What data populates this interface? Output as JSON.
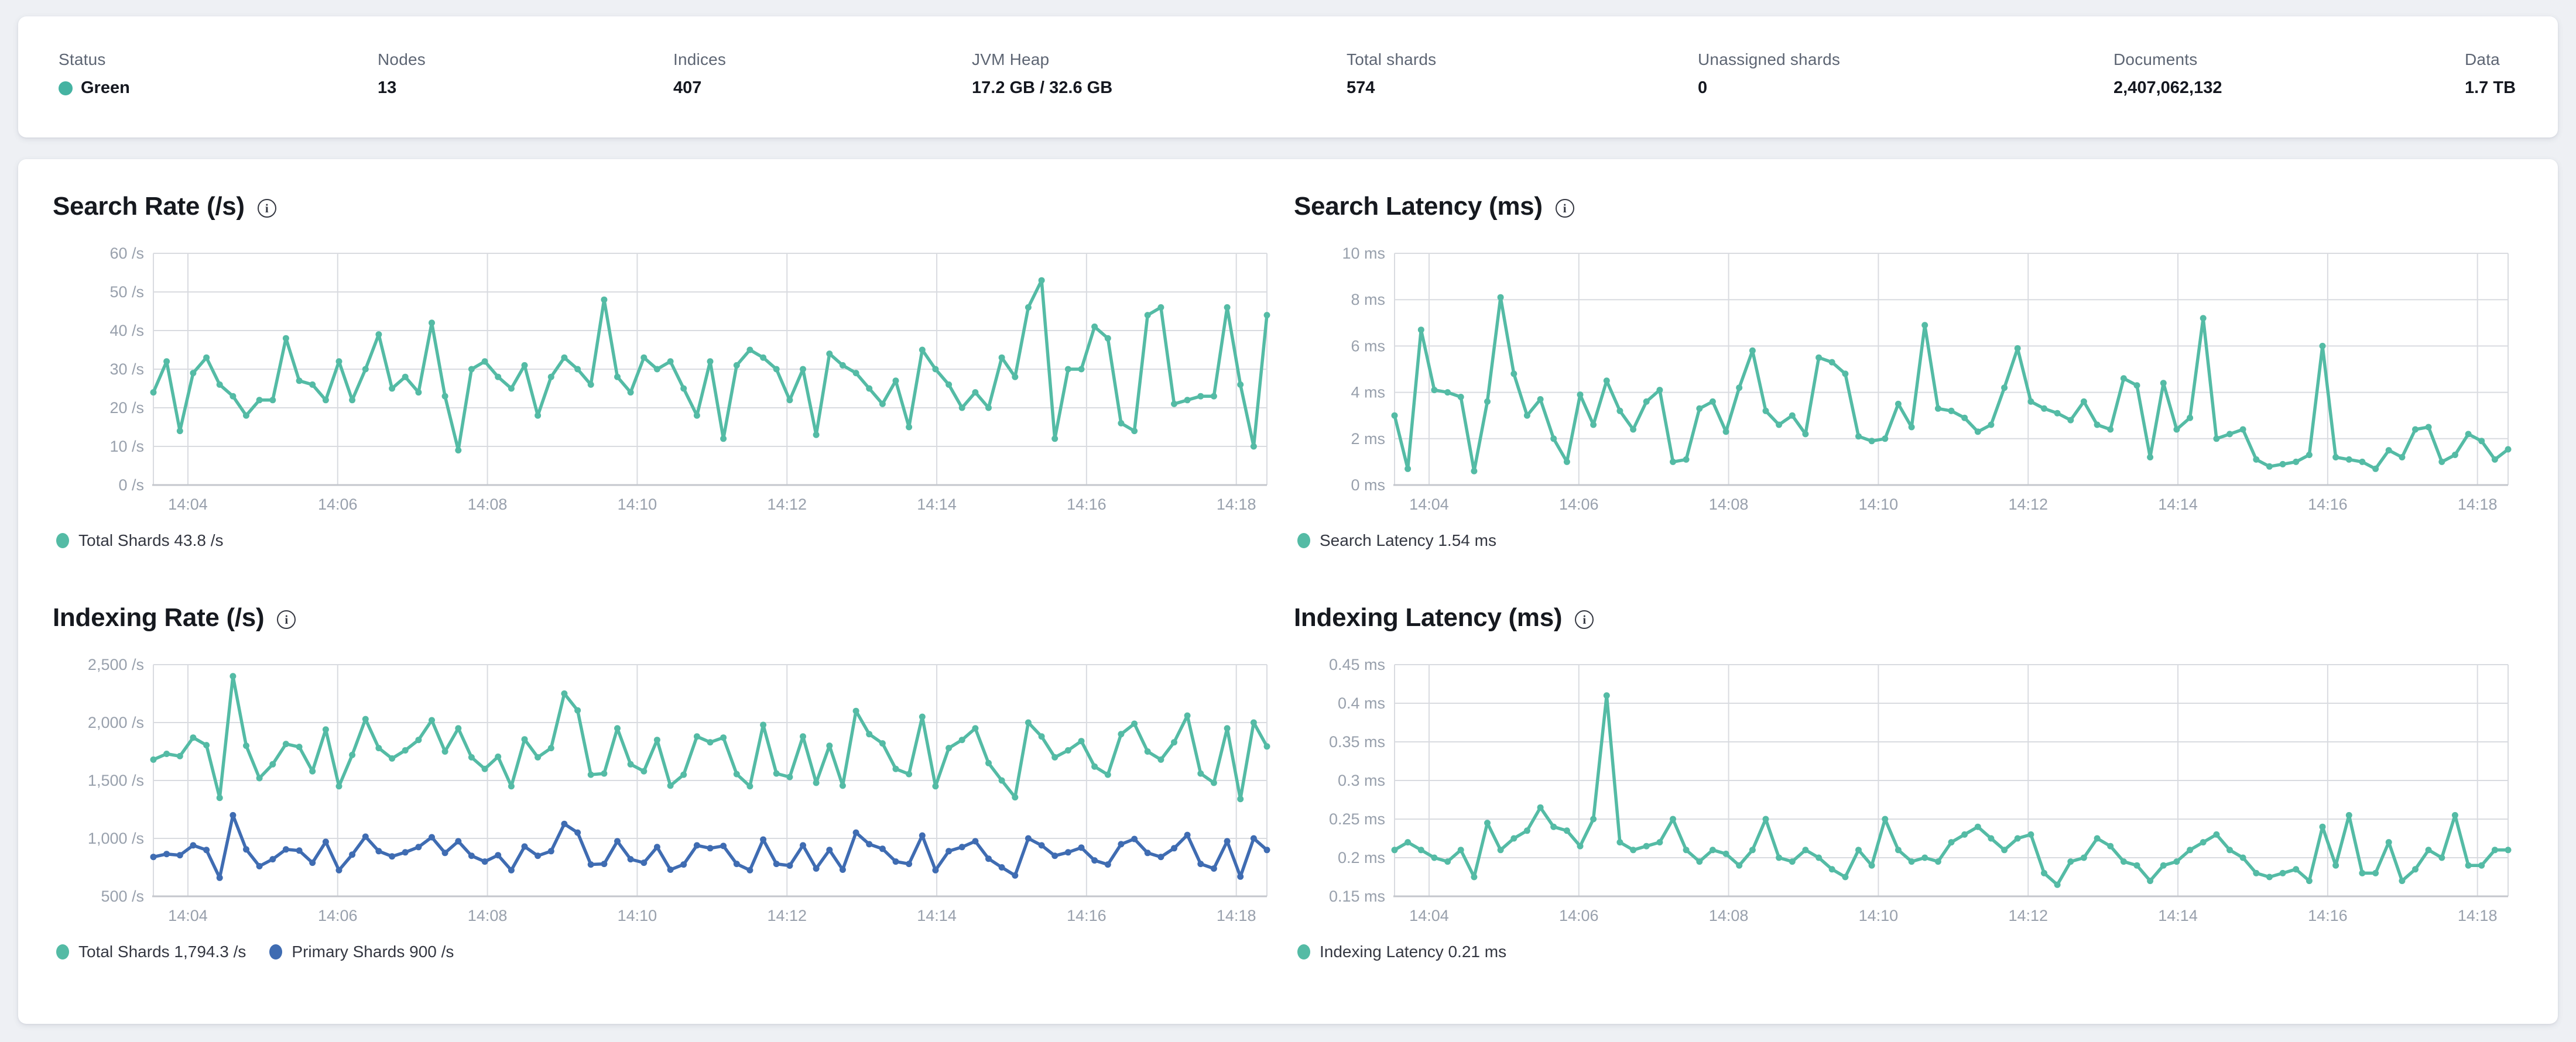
{
  "header": {
    "status_color": "#45b3a2",
    "stats": [
      {
        "label": "Status",
        "value": "Green"
      },
      {
        "label": "Nodes",
        "value": "13"
      },
      {
        "label": "Indices",
        "value": "407"
      },
      {
        "label": "JVM Heap",
        "value": "17.2 GB / 32.6 GB"
      },
      {
        "label": "Total shards",
        "value": "574"
      },
      {
        "label": "Unassigned shards",
        "value": "0"
      },
      {
        "label": "Documents",
        "value": "2,407,062,132"
      },
      {
        "label": "Data",
        "value": "1.7 TB"
      }
    ]
  },
  "chart_data": [
    {
      "type": "line",
      "title": "Search Rate (/s)",
      "ylim": [
        0,
        60
      ],
      "yticks": [
        {
          "v": 0,
          "label": "0 /s"
        },
        {
          "v": 10,
          "label": "10 /s"
        },
        {
          "v": 20,
          "label": "20 /s"
        },
        {
          "v": 30,
          "label": "30 /s"
        },
        {
          "v": 40,
          "label": "40 /s"
        },
        {
          "v": 50,
          "label": "50 /s"
        },
        {
          "v": 60,
          "label": "60 /s"
        }
      ],
      "xticks": [
        "14:04",
        "14:06",
        "14:08",
        "14:10",
        "14:12",
        "14:14",
        "14:16",
        "14:18"
      ],
      "grid": true,
      "legend_position": "bottom",
      "series": [
        {
          "name": "Total Shards",
          "legend": "Total Shards 43.8 /s",
          "color": "#54bba5",
          "values": [
            24,
            32,
            14,
            29,
            33,
            26,
            23,
            18,
            22,
            22,
            38,
            27,
            26,
            22,
            32,
            22,
            30,
            39,
            25,
            28,
            24,
            42,
            23,
            9,
            30,
            32,
            28,
            25,
            31,
            18,
            28,
            33,
            30,
            26,
            48,
            28,
            24,
            33,
            30,
            32,
            25,
            18,
            32,
            12,
            31,
            35,
            33,
            30,
            22,
            30,
            13,
            34,
            31,
            29,
            25,
            21,
            27,
            15,
            35,
            30,
            26,
            20,
            24,
            20,
            33,
            28,
            46,
            53,
            12,
            30,
            30,
            41,
            38,
            16,
            14,
            44,
            46,
            21,
            22,
            23,
            23,
            46,
            26,
            10,
            44
          ]
        }
      ]
    },
    {
      "type": "line",
      "title": "Search Latency (ms)",
      "ylim": [
        0,
        10
      ],
      "yticks": [
        {
          "v": 0,
          "label": "0 ms"
        },
        {
          "v": 2,
          "label": "2 ms"
        },
        {
          "v": 4,
          "label": "4 ms"
        },
        {
          "v": 6,
          "label": "6 ms"
        },
        {
          "v": 8,
          "label": "8 ms"
        },
        {
          "v": 10,
          "label": "10 ms"
        }
      ],
      "xticks": [
        "14:04",
        "14:06",
        "14:08",
        "14:10",
        "14:12",
        "14:14",
        "14:16",
        "14:18"
      ],
      "grid": true,
      "legend_position": "bottom",
      "series": [
        {
          "name": "Search Latency",
          "legend": "Search Latency 1.54 ms",
          "color": "#54bba5",
          "values": [
            3.0,
            0.7,
            6.7,
            4.1,
            4.0,
            3.8,
            0.6,
            3.6,
            8.1,
            4.8,
            3.0,
            3.7,
            2.0,
            1.0,
            3.9,
            2.6,
            4.5,
            3.2,
            2.4,
            3.6,
            4.1,
            1.0,
            1.1,
            3.3,
            3.6,
            2.3,
            4.2,
            5.8,
            3.2,
            2.6,
            3.0,
            2.2,
            5.5,
            5.3,
            4.8,
            2.1,
            1.9,
            2.0,
            3.5,
            2.5,
            6.9,
            3.3,
            3.2,
            2.9,
            2.3,
            2.6,
            4.2,
            5.9,
            3.6,
            3.3,
            3.1,
            2.8,
            3.6,
            2.6,
            2.4,
            4.6,
            4.3,
            1.2,
            4.4,
            2.4,
            2.9,
            7.2,
            2.0,
            2.2,
            2.4,
            1.1,
            0.8,
            0.9,
            1.0,
            1.3,
            6.0,
            1.2,
            1.1,
            1.0,
            0.7,
            1.5,
            1.2,
            2.4,
            2.5,
            1.0,
            1.3,
            2.2,
            1.9,
            1.1,
            1.54
          ]
        }
      ]
    },
    {
      "type": "line",
      "title": "Indexing Rate (/s)",
      "ylim": [
        500,
        2500
      ],
      "yticks": [
        {
          "v": 500,
          "label": "500 /s"
        },
        {
          "v": 1000,
          "label": "1,000 /s"
        },
        {
          "v": 1500,
          "label": "1,500 /s"
        },
        {
          "v": 2000,
          "label": "2,000 /s"
        },
        {
          "v": 2500,
          "label": "2,500 /s"
        }
      ],
      "xticks": [
        "14:04",
        "14:06",
        "14:08",
        "14:10",
        "14:12",
        "14:14",
        "14:16",
        "14:18"
      ],
      "grid": true,
      "legend_position": "bottom",
      "series": [
        {
          "name": "Total Shards",
          "legend": "Total Shards 1,794.3 /s",
          "color": "#54bba5",
          "values": [
            1680,
            1730,
            1710,
            1870,
            1805,
            1350,
            2400,
            1800,
            1520,
            1640,
            1815,
            1790,
            1580,
            1940,
            1450,
            1720,
            2030,
            1780,
            1690,
            1760,
            1850,
            2020,
            1750,
            1950,
            1700,
            1600,
            1705,
            1450,
            1855,
            1700,
            1780,
            2250,
            2105,
            1550,
            1560,
            1950,
            1640,
            1580,
            1850,
            1455,
            1550,
            1880,
            1830,
            1870,
            1555,
            1450,
            1980,
            1560,
            1530,
            1880,
            1480,
            1800,
            1455,
            2100,
            1900,
            1820,
            1600,
            1555,
            2050,
            1450,
            1780,
            1850,
            1950,
            1650,
            1500,
            1355,
            2000,
            1880,
            1700,
            1760,
            1840,
            1620,
            1550,
            1900,
            1990,
            1750,
            1680,
            1830,
            2060,
            1560,
            1480,
            1950,
            1340,
            2000,
            1794
          ]
        },
        {
          "name": "Primary Shards",
          "legend": "Primary Shards 900 /s",
          "color": "#3f6cb2",
          "values": [
            840,
            865,
            855,
            940,
            900,
            660,
            1200,
            905,
            760,
            820,
            905,
            895,
            790,
            970,
            725,
            860,
            1015,
            890,
            845,
            880,
            925,
            1010,
            875,
            975,
            850,
            800,
            855,
            725,
            930,
            850,
            890,
            1125,
            1050,
            775,
            780,
            975,
            820,
            790,
            925,
            730,
            775,
            940,
            915,
            935,
            780,
            725,
            990,
            780,
            765,
            940,
            740,
            900,
            730,
            1050,
            950,
            910,
            800,
            780,
            1025,
            725,
            890,
            925,
            975,
            825,
            750,
            680,
            1000,
            940,
            850,
            880,
            920,
            810,
            775,
            950,
            995,
            875,
            840,
            915,
            1030,
            780,
            740,
            975,
            670,
            1000,
            900
          ]
        }
      ]
    },
    {
      "type": "line",
      "title": "Indexing Latency (ms)",
      "ylim": [
        0.15,
        0.45
      ],
      "yticks": [
        {
          "v": 0.15,
          "label": "0.15 ms"
        },
        {
          "v": 0.2,
          "label": "0.2 ms"
        },
        {
          "v": 0.25,
          "label": "0.25 ms"
        },
        {
          "v": 0.3,
          "label": "0.3 ms"
        },
        {
          "v": 0.35,
          "label": "0.35 ms"
        },
        {
          "v": 0.4,
          "label": "0.4 ms"
        },
        {
          "v": 0.45,
          "label": "0.45 ms"
        }
      ],
      "xticks": [
        "14:04",
        "14:06",
        "14:08",
        "14:10",
        "14:12",
        "14:14",
        "14:16",
        "14:18"
      ],
      "grid": true,
      "legend_position": "bottom",
      "series": [
        {
          "name": "Indexing Latency",
          "legend": "Indexing Latency 0.21 ms",
          "color": "#54bba5",
          "values": [
            0.21,
            0.22,
            0.21,
            0.2,
            0.195,
            0.21,
            0.175,
            0.245,
            0.21,
            0.225,
            0.235,
            0.265,
            0.24,
            0.235,
            0.215,
            0.25,
            0.41,
            0.22,
            0.21,
            0.215,
            0.22,
            0.25,
            0.21,
            0.195,
            0.21,
            0.205,
            0.19,
            0.21,
            0.25,
            0.2,
            0.195,
            0.21,
            0.2,
            0.185,
            0.175,
            0.21,
            0.19,
            0.25,
            0.21,
            0.195,
            0.2,
            0.195,
            0.22,
            0.23,
            0.24,
            0.225,
            0.21,
            0.225,
            0.23,
            0.18,
            0.165,
            0.195,
            0.2,
            0.225,
            0.215,
            0.195,
            0.19,
            0.17,
            0.19,
            0.195,
            0.21,
            0.22,
            0.23,
            0.21,
            0.2,
            0.18,
            0.175,
            0.18,
            0.185,
            0.17,
            0.24,
            0.19,
            0.255,
            0.18,
            0.18,
            0.22,
            0.17,
            0.185,
            0.21,
            0.2,
            0.255,
            0.19,
            0.19,
            0.21,
            0.21
          ]
        }
      ]
    }
  ],
  "style": {
    "grid_color": "#d9dbe0",
    "axis_color": "#c4c7cd",
    "tick_label_color": "#98a0ac"
  }
}
